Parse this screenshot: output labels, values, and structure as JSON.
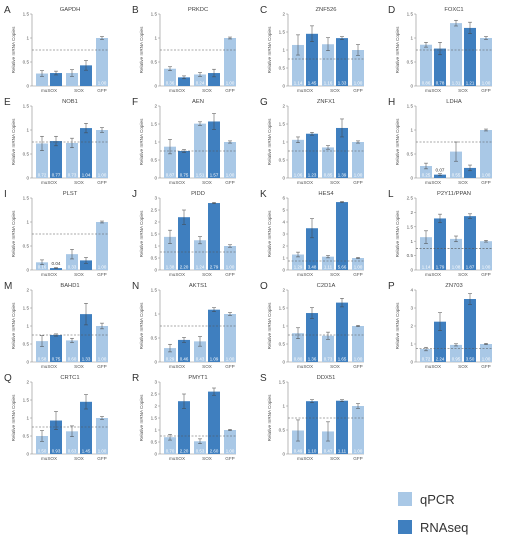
{
  "colors": {
    "qpcr": "#a9c8e6",
    "rnaseq": "#3f7fbf",
    "axis": "#888888",
    "ref_line": "#555555"
  },
  "legend": [
    {
      "name": "qPCR",
      "color": "#a9c8e6"
    },
    {
      "name": "RNAseq",
      "color": "#3f7fbf"
    }
  ],
  "chart_data": [
    {
      "label": "A",
      "title": "GAPDH",
      "type": "bar",
      "ylabel": "Relative mRNA Copies",
      "ylim": [
        0,
        1.5
      ],
      "yticks": [
        0,
        0.5,
        1,
        1.5
      ],
      "ref_line": 0.75,
      "categories": [
        "muSOX",
        "SOX",
        "GFP"
      ],
      "bars": [
        {
          "s": "q",
          "v": 0.26,
          "e": 0.06,
          "lab": ""
        },
        {
          "s": "r",
          "v": 0.27,
          "e": 0.04,
          "lab": ""
        },
        {
          "s": "q",
          "v": 0.27,
          "e": 0.07,
          "lab": ""
        },
        {
          "s": "r",
          "v": 0.43,
          "e": 0.1,
          "lab": ""
        },
        {
          "s": "q",
          "v": 1.0,
          "e": 0.03,
          "lab": "1.00"
        }
      ]
    },
    {
      "label": "B",
      "title": "PRKDC",
      "type": "bar",
      "ylabel": "Relative mRNA Copies",
      "ylim": [
        0,
        1.5
      ],
      "yticks": [
        0,
        0.5,
        1,
        1.5
      ],
      "ref_line": 0.75,
      "categories": [
        "muSOX",
        "SOX",
        "GFP"
      ],
      "bars": [
        {
          "s": "q",
          "v": 0.36,
          "e": 0.04,
          "lab": "0.36"
        },
        {
          "s": "r",
          "v": 0.18,
          "e": 0.03,
          "lab": ""
        },
        {
          "s": "q",
          "v": 0.24,
          "e": 0.04,
          "lab": "0.24"
        },
        {
          "s": "r",
          "v": 0.27,
          "e": 0.08,
          "lab": ""
        },
        {
          "s": "q",
          "v": 1.0,
          "e": 0.02,
          "lab": "1.00"
        }
      ]
    },
    {
      "label": "C",
      "title": "ZNF526",
      "type": "bar",
      "ylabel": "Relative mRNA Copies",
      "ylim": [
        0,
        2
      ],
      "yticks": [
        0,
        0.5,
        1,
        1.5,
        2
      ],
      "ref_line": 0.75,
      "categories": [
        "muSOX",
        "SOX",
        "GFP"
      ],
      "bars": [
        {
          "s": "q",
          "v": 1.14,
          "e": 0.28,
          "lab": "1.14"
        },
        {
          "s": "r",
          "v": 1.45,
          "e": 0.22,
          "lab": "1.45"
        },
        {
          "s": "q",
          "v": 1.16,
          "e": 0.18,
          "lab": "1.16"
        },
        {
          "s": "r",
          "v": 1.33,
          "e": 0.04,
          "lab": "1.33"
        },
        {
          "s": "q",
          "v": 1.0,
          "e": 0.15,
          "lab": "1.00"
        }
      ]
    },
    {
      "label": "D",
      "title": "FOXC1",
      "type": "bar",
      "ylabel": "Relative mRNA Copies",
      "ylim": [
        0,
        1.5
      ],
      "yticks": [
        0,
        0.5,
        1,
        1.5
      ],
      "ref_line": 0.75,
      "categories": [
        "muSOX",
        "SOX",
        "GFP"
      ],
      "bars": [
        {
          "s": "q",
          "v": 0.86,
          "e": 0.05,
          "lab": "0.86"
        },
        {
          "s": "r",
          "v": 0.78,
          "e": 0.13,
          "lab": "0.78"
        },
        {
          "s": "q",
          "v": 1.31,
          "e": 0.06,
          "lab": "1.31"
        },
        {
          "s": "r",
          "v": 1.21,
          "e": 0.12,
          "lab": "1.21"
        },
        {
          "s": "q",
          "v": 1.0,
          "e": 0.03,
          "lab": "1.00"
        }
      ]
    },
    {
      "label": "E",
      "title": "NOB1",
      "type": "bar",
      "ylabel": "Relative mRNA Copies",
      "ylim": [
        0,
        1.5
      ],
      "yticks": [
        0,
        0.5,
        1,
        1.5
      ],
      "ref_line": 0.75,
      "categories": [
        "muSOX",
        "SOX",
        "GFP"
      ],
      "bars": [
        {
          "s": "q",
          "v": 0.72,
          "e": 0.15,
          "lab": "0.72"
        },
        {
          "s": "r",
          "v": 0.77,
          "e": 0.1,
          "lab": "0.77"
        },
        {
          "s": "q",
          "v": 0.73,
          "e": 0.1,
          "lab": "0.73"
        },
        {
          "s": "r",
          "v": 1.04,
          "e": 0.1,
          "lab": "1.04"
        },
        {
          "s": "q",
          "v": 1.0,
          "e": 0.05,
          "lab": "1.00"
        }
      ]
    },
    {
      "label": "F",
      "title": "AEN",
      "type": "bar",
      "ylabel": "Relative mRNA Copies",
      "ylim": [
        0,
        2
      ],
      "yticks": [
        0,
        0.5,
        1,
        1.5,
        2
      ],
      "ref_line": 0.75,
      "categories": [
        "muSOX",
        "SOX",
        "GFP"
      ],
      "bars": [
        {
          "s": "q",
          "v": 0.87,
          "e": 0.2,
          "lab": "0.87"
        },
        {
          "s": "r",
          "v": 0.75,
          "e": 0.04,
          "lab": "0.75"
        },
        {
          "s": "q",
          "v": 1.51,
          "e": 0.05,
          "lab": "1.51"
        },
        {
          "s": "r",
          "v": 1.57,
          "e": 0.22,
          "lab": "1.57"
        },
        {
          "s": "q",
          "v": 1.0,
          "e": 0.03,
          "lab": "1.00"
        }
      ]
    },
    {
      "label": "G",
      "title": "ZNFX1",
      "type": "bar",
      "ylabel": "Relative mRNA Copies",
      "ylim": [
        0,
        2
      ],
      "yticks": [
        0,
        0.5,
        1,
        1.5,
        2
      ],
      "ref_line": 0.75,
      "categories": [
        "muSOX",
        "SOX",
        "GFP"
      ],
      "bars": [
        {
          "s": "q",
          "v": 1.06,
          "e": 0.08,
          "lab": "1.06"
        },
        {
          "s": "r",
          "v": 1.23,
          "e": 0.04,
          "lab": "1.23"
        },
        {
          "s": "q",
          "v": 0.85,
          "e": 0.05,
          "lab": "0.85"
        },
        {
          "s": "r",
          "v": 1.39,
          "e": 0.25,
          "lab": "1.39"
        },
        {
          "s": "q",
          "v": 1.0,
          "e": 0.03,
          "lab": "1.00"
        }
      ]
    },
    {
      "label": "H",
      "title": "LDHA",
      "type": "bar",
      "ylabel": "Relative mRNA Copies",
      "ylim": [
        0,
        1.5
      ],
      "yticks": [
        0,
        0.5,
        1,
        1.5
      ],
      "ref_line": 0.75,
      "categories": [
        "muSOX",
        "SOX",
        "GFP"
      ],
      "bars": [
        {
          "s": "q",
          "v": 0.25,
          "e": 0.06,
          "lab": "0.25"
        },
        {
          "s": "r",
          "v": 0.07,
          "e": 0.02,
          "lab": "0.07"
        },
        {
          "s": "q",
          "v": 0.55,
          "e": 0.2,
          "lab": "0.55"
        },
        {
          "s": "r",
          "v": 0.21,
          "e": 0.06,
          "lab": ""
        },
        {
          "s": "q",
          "v": 1.0,
          "e": 0.02,
          "lab": "1.00"
        }
      ]
    },
    {
      "label": "I",
      "title": "PLST",
      "type": "bar",
      "ylabel": "Relative mRNA Copies",
      "ylim": [
        0,
        1.5
      ],
      "yticks": [
        0,
        0.5,
        1,
        1.5
      ],
      "ref_line": 0.75,
      "categories": [
        "muSOX",
        "SOX",
        "GFP"
      ],
      "bars": [
        {
          "s": "q",
          "v": 0.16,
          "e": 0.05,
          "lab": "0.16"
        },
        {
          "s": "r",
          "v": 0.04,
          "e": 0.01,
          "lab": "0.04"
        },
        {
          "s": "q",
          "v": 0.33,
          "e": 0.1,
          "lab": "0.33"
        },
        {
          "s": "r",
          "v": 0.2,
          "e": 0.06,
          "lab": ""
        },
        {
          "s": "q",
          "v": 1.0,
          "e": 0.02,
          "lab": "1.00"
        }
      ]
    },
    {
      "label": "J",
      "title": "PIDD",
      "type": "bar",
      "ylabel": "Relative mRNA Copies",
      "ylim": [
        0,
        3
      ],
      "yticks": [
        0,
        0.5,
        1,
        1.5,
        2,
        2.5,
        3
      ],
      "ref_line": 0.75,
      "categories": [
        "muSOX",
        "SOX",
        "GFP"
      ],
      "bars": [
        {
          "s": "q",
          "v": 1.38,
          "e": 0.28,
          "lab": "1.38"
        },
        {
          "s": "r",
          "v": 2.2,
          "e": 0.3,
          "lab": "2.20"
        },
        {
          "s": "q",
          "v": 1.24,
          "e": 0.15,
          "lab": "1.24"
        },
        {
          "s": "r",
          "v": 2.79,
          "e": 0.03,
          "lab": "2.79"
        },
        {
          "s": "q",
          "v": 1.0,
          "e": 0.05,
          "lab": "1.00"
        }
      ]
    },
    {
      "label": "K",
      "title": "HES4",
      "type": "bar",
      "ylabel": "Relative mRNA Copies",
      "ylim": [
        0,
        6
      ],
      "yticks": [
        0,
        1,
        2,
        3,
        4,
        5,
        6
      ],
      "ref_line": 0.75,
      "categories": [
        "muSOX",
        "SOX",
        "GFP"
      ],
      "bars": [
        {
          "s": "q",
          "v": 1.29,
          "e": 0.2,
          "lab": "1.29"
        },
        {
          "s": "r",
          "v": 3.48,
          "e": 0.8,
          "lab": "3.48"
        },
        {
          "s": "q",
          "v": 1.11,
          "e": 0.1,
          "lab": "1.11"
        },
        {
          "s": "r",
          "v": 5.66,
          "e": 0.05,
          "lab": "5.66"
        },
        {
          "s": "q",
          "v": 1.0,
          "e": 0.05,
          "lab": "1.00"
        }
      ]
    },
    {
      "label": "L",
      "title": "P2Y11/PPAN",
      "type": "bar",
      "ylabel": "Relative mRNA Copies",
      "ylim": [
        0,
        2.5
      ],
      "yticks": [
        0,
        0.5,
        1,
        1.5,
        2,
        2.5
      ],
      "ref_line": 0.75,
      "categories": [
        "muSOX",
        "SOX",
        "GFP"
      ],
      "bars": [
        {
          "s": "q",
          "v": 1.14,
          "e": 0.22,
          "lab": "1.14"
        },
        {
          "s": "r",
          "v": 1.79,
          "e": 0.15,
          "lab": "1.79"
        },
        {
          "s": "q",
          "v": 1.08,
          "e": 0.1,
          "lab": "1.08"
        },
        {
          "s": "r",
          "v": 1.87,
          "e": 0.08,
          "lab": "1.87"
        },
        {
          "s": "q",
          "v": 1.0,
          "e": 0.03,
          "lab": "1.00"
        }
      ]
    },
    {
      "label": "M",
      "title": "BAHD1",
      "type": "bar",
      "ylabel": "Relative mRNA Copies",
      "ylim": [
        0,
        2
      ],
      "yticks": [
        0,
        0.5,
        1,
        1.5,
        2
      ],
      "ref_line": 0.75,
      "categories": [
        "muSOX",
        "SOX",
        "GFP"
      ],
      "bars": [
        {
          "s": "q",
          "v": 0.58,
          "e": 0.15,
          "lab": "0.58"
        },
        {
          "s": "r",
          "v": 0.75,
          "e": 0.03,
          "lab": "0.75"
        },
        {
          "s": "q",
          "v": 0.6,
          "e": 0.06,
          "lab": "0.60"
        },
        {
          "s": "r",
          "v": 1.33,
          "e": 0.3,
          "lab": "1.33"
        },
        {
          "s": "q",
          "v": 1.0,
          "e": 0.08,
          "lab": "1.00"
        }
      ]
    },
    {
      "label": "N",
      "title": "AKTS1",
      "type": "bar",
      "ylabel": "Relative mRNA Copies",
      "ylim": [
        0,
        1.5
      ],
      "yticks": [
        0,
        0.5,
        1,
        1.5
      ],
      "ref_line": 0.75,
      "categories": [
        "muSOX",
        "SOX",
        "GFP"
      ],
      "bars": [
        {
          "s": "q",
          "v": 0.29,
          "e": 0.08,
          "lab": "0.29"
        },
        {
          "s": "r",
          "v": 0.46,
          "e": 0.05,
          "lab": "0.46"
        },
        {
          "s": "q",
          "v": 0.43,
          "e": 0.1,
          "lab": "0.43"
        },
        {
          "s": "r",
          "v": 1.09,
          "e": 0.04,
          "lab": "1.09"
        },
        {
          "s": "q",
          "v": 1.0,
          "e": 0.03,
          "lab": "1.00"
        }
      ]
    },
    {
      "label": "O",
      "title": "C2D1A",
      "type": "bar",
      "ylabel": "Relative mRNA Copies",
      "ylim": [
        0,
        2
      ],
      "yticks": [
        0,
        0.5,
        1,
        1.5,
        2
      ],
      "ref_line": 0.75,
      "categories": [
        "muSOX",
        "SOX",
        "GFP"
      ],
      "bars": [
        {
          "s": "q",
          "v": 0.8,
          "e": 0.15,
          "lab": "0.80"
        },
        {
          "s": "r",
          "v": 1.36,
          "e": 0.15,
          "lab": "1.36"
        },
        {
          "s": "q",
          "v": 0.73,
          "e": 0.1,
          "lab": "0.73"
        },
        {
          "s": "r",
          "v": 1.65,
          "e": 0.12,
          "lab": "1.65"
        },
        {
          "s": "q",
          "v": 1.0,
          "e": 0.02,
          "lab": "1.00"
        }
      ]
    },
    {
      "label": "P",
      "title": "ZN703",
      "type": "bar",
      "ylabel": "Relative mRNA Copies",
      "ylim": [
        0,
        4
      ],
      "yticks": [
        0,
        1,
        2,
        3,
        4
      ],
      "ref_line": 0.75,
      "categories": [
        "muSOX",
        "SOX",
        "GFP"
      ],
      "bars": [
        {
          "s": "q",
          "v": 0.72,
          "e": 0.1,
          "lab": "0.72"
        },
        {
          "s": "r",
          "v": 2.24,
          "e": 0.5,
          "lab": "2.24"
        },
        {
          "s": "q",
          "v": 0.95,
          "e": 0.06,
          "lab": "0.95"
        },
        {
          "s": "r",
          "v": 3.5,
          "e": 0.3,
          "lab": "3.50"
        },
        {
          "s": "q",
          "v": 1.0,
          "e": 0.04,
          "lab": "1.00"
        }
      ]
    },
    {
      "label": "Q",
      "title": "CRTC1",
      "type": "bar",
      "ylabel": "Relative mRNA Copies",
      "ylim": [
        0,
        2
      ],
      "yticks": [
        0,
        0.5,
        1,
        1.5,
        2
      ],
      "ref_line": 0.75,
      "categories": [
        "muSOX",
        "SOX",
        "GFP"
      ],
      "bars": [
        {
          "s": "q",
          "v": 0.5,
          "e": 0.15,
          "lab": "0.50"
        },
        {
          "s": "r",
          "v": 0.93,
          "e": 0.25,
          "lab": "0.93"
        },
        {
          "s": "q",
          "v": 0.63,
          "e": 0.15,
          "lab": "0.63"
        },
        {
          "s": "r",
          "v": 1.45,
          "e": 0.2,
          "lab": "1.45"
        },
        {
          "s": "q",
          "v": 1.0,
          "e": 0.04,
          "lab": "1.00"
        }
      ]
    },
    {
      "label": "R",
      "title": "PMYT1",
      "type": "bar",
      "ylabel": "Relative mRNA Copies",
      "ylim": [
        0,
        3
      ],
      "yticks": [
        0,
        0.5,
        1,
        1.5,
        2,
        2.5,
        3
      ],
      "ref_line": 0.75,
      "categories": [
        "muSOX",
        "SOX",
        "GFP"
      ],
      "bars": [
        {
          "s": "q",
          "v": 0.7,
          "e": 0.12,
          "lab": "0.70"
        },
        {
          "s": "r",
          "v": 2.2,
          "e": 0.3,
          "lab": "2.20"
        },
        {
          "s": "q",
          "v": 0.53,
          "e": 0.1,
          "lab": "0.53"
        },
        {
          "s": "r",
          "v": 2.6,
          "e": 0.15,
          "lab": "2.60"
        },
        {
          "s": "q",
          "v": 1.0,
          "e": 0.03,
          "lab": "1.00"
        }
      ]
    },
    {
      "label": "S",
      "title": "DDX51",
      "type": "bar",
      "ylabel": "Relative mRNA Copies",
      "ylim": [
        0,
        1.5
      ],
      "yticks": [
        0,
        0.5,
        1,
        1.5
      ],
      "ref_line": 0.75,
      "categories": [
        "muSOX",
        "SOX",
        "GFP"
      ],
      "bars": [
        {
          "s": "q",
          "v": 0.49,
          "e": 0.22,
          "lab": "0.49"
        },
        {
          "s": "r",
          "v": 1.1,
          "e": 0.03,
          "lab": "1.10"
        },
        {
          "s": "q",
          "v": 0.47,
          "e": 0.2,
          "lab": "0.47"
        },
        {
          "s": "r",
          "v": 1.11,
          "e": 0.02,
          "lab": "1.11"
        },
        {
          "s": "q",
          "v": 1.0,
          "e": 0.05,
          "lab": "1.00"
        }
      ]
    }
  ]
}
